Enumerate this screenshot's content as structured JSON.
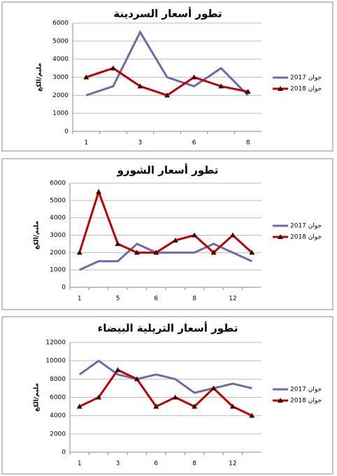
{
  "chart_data": [
    {
      "type": "line",
      "title": "تطور أسعار السردينة",
      "y_label": "مليم/الكغ",
      "categories": [
        "1",
        null,
        "3",
        null,
        "6",
        null,
        "8"
      ],
      "series": [
        {
          "name": "جوان 2017",
          "color": "#6b6ba8",
          "values": [
            2000,
            2500,
            5500,
            3000,
            2500,
            3500,
            2000
          ]
        },
        {
          "name": "جوان 2018",
          "color": "#c00000",
          "marker": "triangle",
          "values": [
            3000,
            3500,
            2500,
            2000,
            3000,
            2500,
            2200
          ]
        }
      ],
      "ylim": [
        0,
        6000
      ],
      "yticks": [
        0,
        1000,
        2000,
        3000,
        4000,
        5000,
        6000
      ],
      "grid": true,
      "legend": "right"
    },
    {
      "type": "line",
      "title": "تطور أسعار الشورو",
      "y_label": "مليم/الكغ",
      "categories": [
        "1",
        null,
        "5",
        null,
        "6",
        null,
        "8",
        null,
        "12",
        null
      ],
      "series": [
        {
          "name": "جوان 2017",
          "color": "#6b6ba8",
          "values": [
            1000,
            1500,
            1500,
            2500,
            2000,
            2000,
            2000,
            2500,
            2000,
            1500
          ]
        },
        {
          "name": "جوان 2018",
          "color": "#c00000",
          "marker": "triangle",
          "values": [
            2000,
            5500,
            2500,
            2000,
            2000,
            2700,
            3000,
            2000,
            3000,
            2000
          ]
        }
      ],
      "ylim": [
        0,
        6000
      ],
      "yticks": [
        0,
        1000,
        2000,
        3000,
        4000,
        5000,
        6000
      ],
      "grid": true,
      "legend": "right"
    },
    {
      "type": "line",
      "title": "تطور أسعار التريلية البيضاء",
      "y_label": "مليم/الكغ",
      "categories": [
        "1",
        null,
        "3",
        null,
        "6",
        null,
        "8",
        null,
        "12",
        null
      ],
      "series": [
        {
          "name": "جوان 2017",
          "color": "#6b6ba8",
          "values": [
            8500,
            10000,
            8500,
            8000,
            8500,
            8000,
            6500,
            7000,
            7500,
            7000
          ]
        },
        {
          "name": "جوان 2018",
          "color": "#c00000",
          "marker": "triangle",
          "values": [
            5000,
            6000,
            9000,
            8000,
            5000,
            6000,
            5000,
            7000,
            5000,
            4000
          ]
        }
      ],
      "ylim": [
        0,
        12000
      ],
      "yticks": [
        0,
        2000,
        4000,
        6000,
        8000,
        10000,
        12000
      ],
      "grid": true,
      "legend": "right"
    }
  ]
}
